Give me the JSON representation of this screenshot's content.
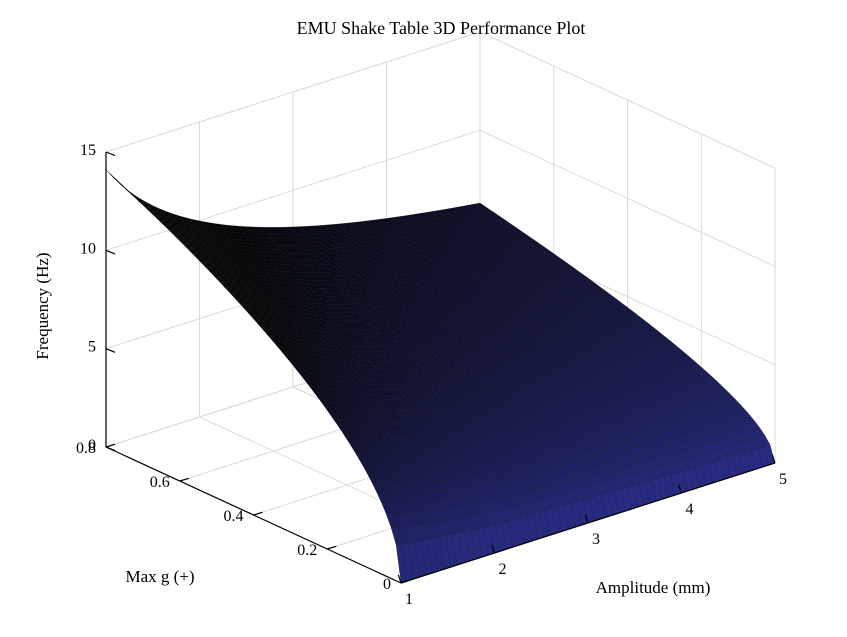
{
  "chart_data": {
    "type": "surface",
    "title": "EMU Shake Table 3D Performance Plot",
    "xlabel": "Amplitude (mm)",
    "ylabel": "Max g (+)",
    "zlabel": "Frequency (Hz)",
    "xlim": [
      1,
      5
    ],
    "ylim": [
      0,
      0.8
    ],
    "zlim": [
      0,
      15
    ],
    "xticks": [
      "1",
      "2",
      "3",
      "4",
      "5"
    ],
    "yticks": [
      "0",
      "0.2",
      "0.4",
      "0.6",
      "0.8"
    ],
    "zticks": [
      "0",
      "5",
      "10",
      "15"
    ],
    "grid": true,
    "colormap": "parula-dark",
    "surface_corners": [
      {
        "amplitude_mm": 1,
        "max_g": 0.8,
        "frequency_hz": 14.1
      },
      {
        "amplitude_mm": 5,
        "max_g": 0.8,
        "frequency_hz": 6.3
      },
      {
        "amplitude_mm": 5,
        "max_g": 0.0,
        "frequency_hz": 0
      },
      {
        "amplitude_mm": 1,
        "max_g": 0.0,
        "frequency_hz": 0
      }
    ],
    "surface_formula": "frequency = sqrt(g * 9.81 / (amplitude_mm / 1000)) / (2 * pi)"
  },
  "colors": {
    "background": "#ffffff",
    "axes": "#000000",
    "grid": "#d9d9d9",
    "surface_low": "#2a2e8c",
    "surface_high": "#050608",
    "edge": "#000000"
  }
}
